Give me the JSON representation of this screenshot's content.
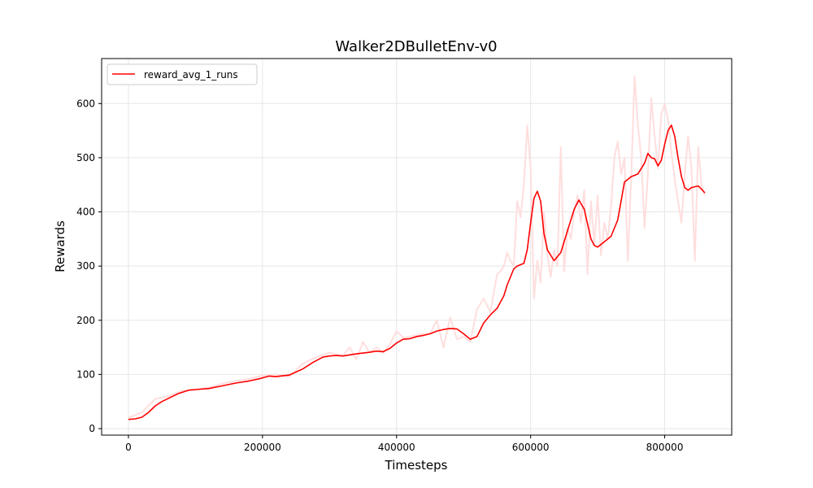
{
  "chart_data": {
    "type": "line",
    "title": "Walker2DBulletEnv-v0",
    "xlabel": "Timesteps",
    "ylabel": "Rewards",
    "xlim": [
      -40000,
      900000
    ],
    "ylim": [
      -12,
      683
    ],
    "xticks": [
      0,
      200000,
      400000,
      600000,
      800000
    ],
    "xtick_labels": [
      "0",
      "200000",
      "400000",
      "600000",
      "800000"
    ],
    "yticks": [
      0,
      100,
      200,
      300,
      400,
      500,
      600
    ],
    "ytick_labels": [
      "0",
      "100",
      "200",
      "300",
      "400",
      "500",
      "600"
    ],
    "grid": true,
    "legend_position": "upper-left",
    "colors": {
      "smoothed": "#ff0000",
      "raw": "#ffdede",
      "grid": "#e6e6e6"
    },
    "series": [
      {
        "name": "reward_avg_1_runs",
        "role": "smoothed",
        "x": [
          0,
          10000,
          20000,
          30000,
          40000,
          50000,
          60000,
          75000,
          90000,
          100000,
          120000,
          140000,
          160000,
          180000,
          195000,
          210000,
          220000,
          240000,
          260000,
          275000,
          290000,
          300000,
          310000,
          320000,
          340000,
          360000,
          370000,
          380000,
          390000,
          400000,
          410000,
          420000,
          430000,
          440000,
          450000,
          460000,
          470000,
          480000,
          490000,
          500000,
          510000,
          520000,
          530000,
          540000,
          550000,
          560000,
          565000,
          575000,
          580000,
          590000,
          595000,
          600000,
          605000,
          610000,
          615000,
          620000,
          625000,
          635000,
          645000,
          655000,
          665000,
          672000,
          680000,
          690000,
          695000,
          700000,
          710000,
          720000,
          730000,
          740000,
          750000,
          760000,
          770000,
          775000,
          780000,
          785000,
          790000,
          795000,
          800000,
          805000,
          810000,
          815000,
          820000,
          825000,
          830000,
          835000,
          840000,
          850000,
          855000,
          860000
        ],
        "y": [
          17,
          18,
          21,
          30,
          42,
          50,
          56,
          65,
          71,
          72,
          74,
          79,
          84,
          88,
          92,
          97,
          96,
          99,
          110,
          122,
          132,
          134,
          135,
          134,
          138,
          141,
          143,
          142,
          148,
          158,
          165,
          166,
          170,
          172,
          175,
          180,
          183,
          185,
          184,
          175,
          165,
          170,
          195,
          210,
          222,
          245,
          265,
          295,
          300,
          305,
          330,
          380,
          425,
          438,
          420,
          360,
          330,
          310,
          325,
          365,
          405,
          422,
          405,
          350,
          338,
          335,
          345,
          355,
          385,
          455,
          465,
          470,
          490,
          508,
          500,
          498,
          485,
          495,
          525,
          550,
          560,
          540,
          500,
          465,
          445,
          440,
          445,
          448,
          442,
          435
        ]
      },
      {
        "name": "raw",
        "role": "raw",
        "x": [
          0,
          20000,
          40000,
          60000,
          80000,
          100000,
          120000,
          140000,
          160000,
          180000,
          200000,
          220000,
          240000,
          260000,
          280000,
          300000,
          320000,
          330000,
          340000,
          350000,
          360000,
          370000,
          380000,
          390000,
          400000,
          410000,
          420000,
          440000,
          450000,
          460000,
          470000,
          480000,
          490000,
          500000,
          510000,
          520000,
          530000,
          540000,
          550000,
          555000,
          560000,
          565000,
          570000,
          575000,
          580000,
          585000,
          590000,
          595000,
          600000,
          605000,
          610000,
          615000,
          620000,
          625000,
          630000,
          635000,
          640000,
          645000,
          650000,
          655000,
          660000,
          665000,
          670000,
          675000,
          680000,
          685000,
          690000,
          695000,
          700000,
          705000,
          710000,
          715000,
          720000,
          725000,
          730000,
          735000,
          740000,
          745000,
          750000,
          755000,
          760000,
          765000,
          770000,
          775000,
          780000,
          785000,
          790000,
          795000,
          800000,
          805000,
          810000,
          815000,
          820000,
          825000,
          830000,
          835000,
          840000,
          845000,
          850000,
          855000,
          860000
        ],
        "y": [
          20,
          30,
          55,
          60,
          70,
          72,
          76,
          83,
          88,
          92,
          98,
          100,
          96,
          120,
          132,
          140,
          135,
          150,
          128,
          160,
          140,
          150,
          140,
          155,
          180,
          168,
          170,
          175,
          175,
          200,
          150,
          205,
          165,
          170,
          160,
          220,
          240,
          215,
          285,
          290,
          300,
          325,
          310,
          300,
          420,
          390,
          450,
          560,
          480,
          240,
          310,
          270,
          400,
          320,
          280,
          330,
          300,
          520,
          290,
          370,
          350,
          400,
          430,
          380,
          440,
          285,
          420,
          340,
          430,
          320,
          380,
          350,
          410,
          500,
          530,
          470,
          500,
          310,
          460,
          650,
          560,
          500,
          370,
          470,
          610,
          540,
          480,
          580,
          600,
          570,
          510,
          460,
          420,
          380,
          470,
          540,
          480,
          310,
          520,
          450,
          430
        ]
      }
    ]
  }
}
